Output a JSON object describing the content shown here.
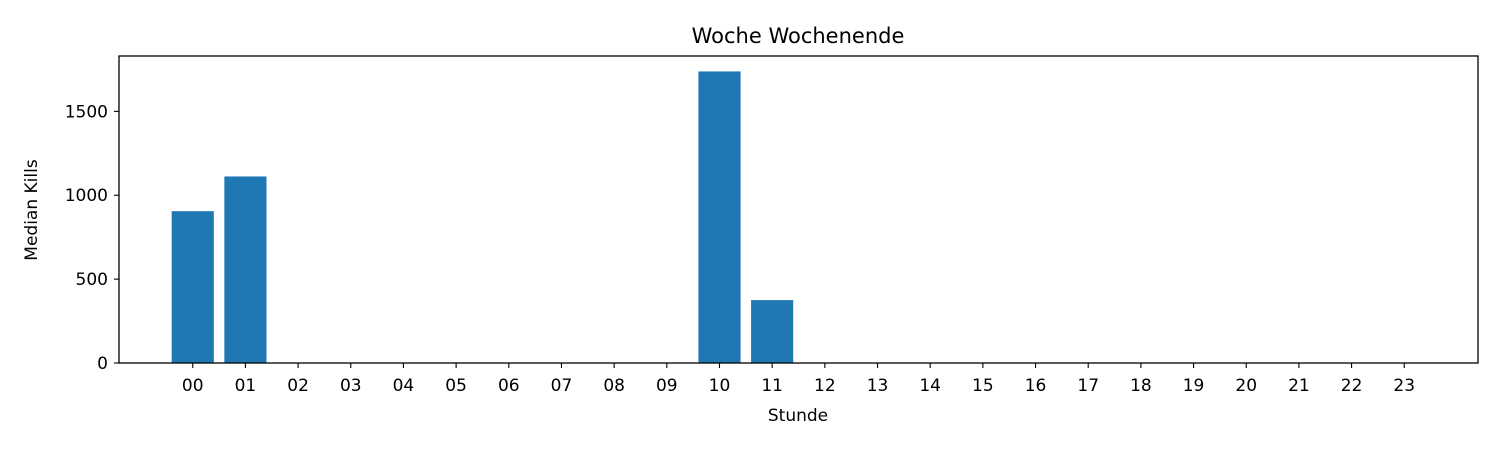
{
  "chart_data": {
    "type": "bar",
    "title": "Woche Wochenende",
    "xlabel": "Stunde",
    "ylabel": "Median Kills",
    "categories": [
      "00",
      "01",
      "02",
      "03",
      "04",
      "05",
      "06",
      "07",
      "08",
      "09",
      "10",
      "11",
      "12",
      "13",
      "14",
      "15",
      "16",
      "17",
      "18",
      "19",
      "20",
      "21",
      "22",
      "23"
    ],
    "values": [
      905,
      1112,
      0,
      0,
      0,
      0,
      0,
      0,
      0,
      0,
      1738,
      375,
      0,
      0,
      0,
      0,
      0,
      0,
      0,
      0,
      0,
      0,
      0,
      0
    ],
    "yticks": [
      0,
      500,
      1000,
      1500
    ],
    "ylim": [
      0,
      1830
    ],
    "grid": false,
    "legend": "none",
    "bar_color": "#1f77b4"
  }
}
